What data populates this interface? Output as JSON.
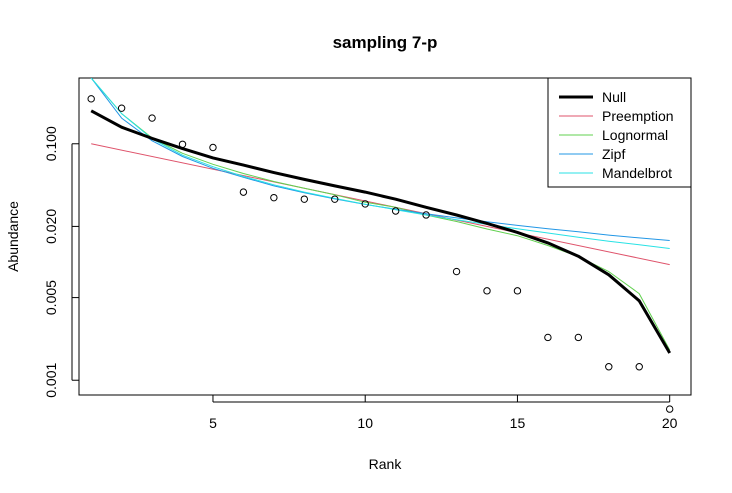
{
  "chart_data": {
    "type": "scatter",
    "title": "sampling 7-p",
    "xlabel": "Rank",
    "ylabel": "Abundance",
    "xlim": [
      0.6,
      20.7
    ],
    "ylim": [
      0.00075,
      0.36
    ],
    "y_scale": "log",
    "x_ticks": [
      5,
      10,
      15,
      20
    ],
    "x_tick_labels": [
      "5",
      "10",
      "15",
      "20"
    ],
    "y_ticks": [
      0.001,
      0.005,
      0.02,
      0.1
    ],
    "y_tick_labels": [
      "0.001",
      "0.005",
      "0.020",
      "0.100"
    ],
    "grid": false,
    "legend_position": "top-right",
    "points": {
      "x": [
        1,
        2,
        3,
        4,
        5,
        6,
        7,
        8,
        9,
        10,
        11,
        12,
        13,
        14,
        15,
        16,
        17,
        18,
        19,
        20
      ],
      "y": [
        0.24,
        0.2,
        0.165,
        0.099,
        0.093,
        0.039,
        0.035,
        0.034,
        0.034,
        0.031,
        0.027,
        0.025,
        0.0083,
        0.0057,
        0.0057,
        0.0023,
        0.0023,
        0.0013,
        0.0013,
        0.00057
      ]
    },
    "series": [
      {
        "name": "Null",
        "color": "#000000",
        "width": 3,
        "x": [
          1,
          2,
          3,
          4,
          5,
          6,
          7,
          8,
          9,
          10,
          11,
          12,
          13,
          14,
          15,
          16,
          17,
          18,
          19,
          20
        ],
        "y": [
          0.19,
          0.138,
          0.111,
          0.091,
          0.076,
          0.066,
          0.057,
          0.05,
          0.044,
          0.039,
          0.034,
          0.029,
          0.025,
          0.0212,
          0.0178,
          0.0145,
          0.0112,
          0.0078,
          0.0047,
          0.0017
        ]
      },
      {
        "name": "Preemption",
        "color": "#DF536B",
        "width": 1,
        "x": [
          1,
          20
        ],
        "y": [
          0.1,
          0.0095
        ]
      },
      {
        "name": "Lognormal",
        "color": "#61D04F",
        "width": 1,
        "x": [
          1,
          2,
          3,
          4,
          5,
          6,
          7,
          8,
          9,
          10,
          11,
          12,
          13,
          14,
          15,
          16,
          17,
          18,
          19,
          20
        ],
        "y": [
          0.36,
          0.18,
          0.112,
          0.083,
          0.067,
          0.056,
          0.048,
          0.042,
          0.037,
          0.032,
          0.029,
          0.025,
          0.022,
          0.019,
          0.0167,
          0.0138,
          0.0111,
          0.0083,
          0.0054,
          0.0018
        ]
      },
      {
        "name": "Zipf",
        "color": "#2297E6",
        "width": 1,
        "x": [
          1,
          2,
          3,
          4,
          5,
          6,
          7,
          8,
          9,
          10,
          11,
          12,
          13,
          14,
          15,
          16,
          17,
          18,
          19,
          20
        ],
        "y": [
          0.36,
          0.165,
          0.106,
          0.078,
          0.062,
          0.052,
          0.044,
          0.0385,
          0.0342,
          0.0307,
          0.0279,
          0.0256,
          0.0236,
          0.0219,
          0.0204,
          0.0191,
          0.018,
          0.0169,
          0.016,
          0.0152
        ]
      },
      {
        "name": "Mandelbrot",
        "color": "#28E2E5",
        "width": 1,
        "x": [
          1,
          2,
          3,
          4,
          5,
          6,
          7,
          8,
          9,
          10,
          11,
          12,
          13,
          14,
          15,
          16,
          17,
          18,
          19,
          20
        ],
        "y": [
          0.36,
          0.18,
          0.11,
          0.08,
          0.064,
          0.053,
          0.045,
          0.039,
          0.0345,
          0.0308,
          0.0277,
          0.025,
          0.0228,
          0.0208,
          0.0191,
          0.0176,
          0.0162,
          0.015,
          0.014,
          0.013
        ]
      }
    ]
  }
}
